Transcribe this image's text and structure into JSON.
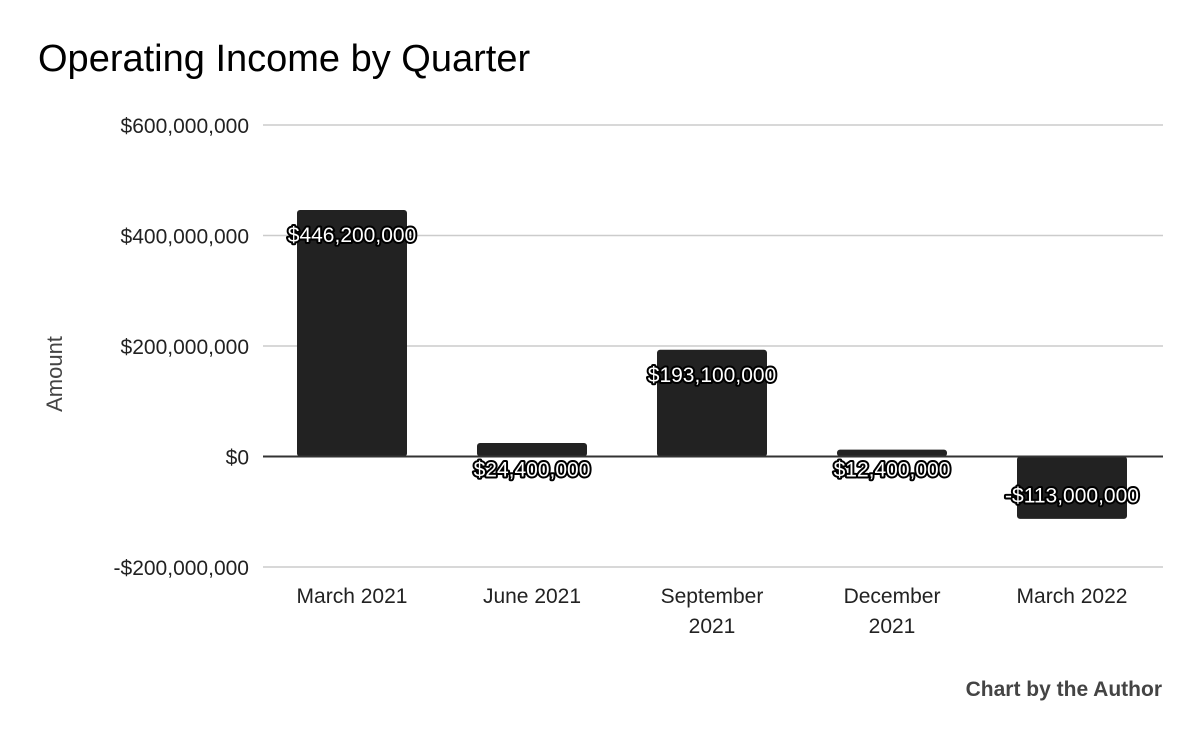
{
  "chart_data": {
    "type": "bar",
    "title": "Operating Income by Quarter",
    "ylabel": "Amount",
    "xlabel": "",
    "categories": [
      "March 2021",
      "June 2021",
      "September 2021",
      "December 2021",
      "March 2022"
    ],
    "category_lines": [
      [
        "March 2021"
      ],
      [
        "June 2021"
      ],
      [
        "September",
        "2021"
      ],
      [
        "December",
        "2021"
      ],
      [
        "March 2022"
      ]
    ],
    "values": [
      446200000,
      24400000,
      193100000,
      12400000,
      -113000000
    ],
    "data_labels": [
      "$446,200,000",
      "$24,400,000",
      "$193,100,000",
      "$12,400,000",
      "-$113,000,000"
    ],
    "ylim": [
      -200000000,
      600000000
    ],
    "yticks": [
      600000000,
      400000000,
      200000000,
      0,
      -200000000
    ],
    "ytick_labels": [
      "$600,000,000",
      "$400,000,000",
      "$200,000,000",
      "$0",
      "-$200,000,000"
    ],
    "grid": true,
    "legend": "none",
    "bar_color": "#222222",
    "credit": "Chart by the Author"
  }
}
